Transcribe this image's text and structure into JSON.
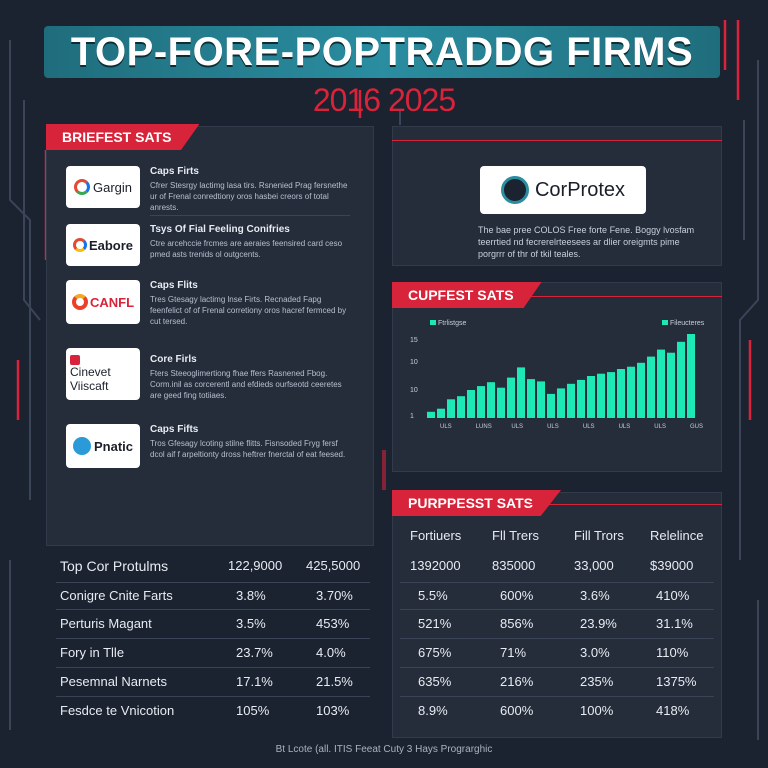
{
  "header": {
    "title": "TOP-FORE-POPTRADDG FIRMS",
    "subtitle": "2016 2025"
  },
  "left_panel": {
    "tag": "BRIEFEST SATS",
    "firms": [
      {
        "logo": "Gargin",
        "logo_icon": "g-logo-icon",
        "title": "Caps Firts",
        "desc": "Cfrer Stesrgy lactimg lasa tirs. Rsnenied Prag fersnethe ur of Frenal conredtiony oros hasbei creors of total anrests."
      },
      {
        "logo": "Eabore",
        "logo_icon": "g-logo-icon",
        "title": "Tsys Of Fial Feeling Conifries",
        "desc": "Ctre arcehccie frcmes are aeraies feensired card ceso pmed asts trenids ol outgcents."
      },
      {
        "logo": "CANFL",
        "logo_icon": "swirl-icon",
        "title": "Caps Flits",
        "desc": "Tres Gtesagy lactimg lnse Firts. Recnaded Fapg feenfelict of of Frenal corretiony oros hacref fermced by cut tersed."
      },
      {
        "logo": "Cinevet Viiscaft",
        "logo_icon": "red-s-icon",
        "title": "Core Firls",
        "desc": "Fters Steeoglimertiong fhae ffers Rasnened Fbog. Corm.inil as corcerentl and efdieds ourfseotd ceeretes are geed fing totiiaes."
      },
      {
        "logo": "Pnatic",
        "logo_icon": "p-circle-icon",
        "title": "Caps Fifts",
        "desc": "Tros Gfesagy lcoting stilne flitts. Fisnsoded Fryg fersf dcol aif f arpeltionty dross heftrer fnerctal of eat feesed."
      }
    ]
  },
  "right_top": {
    "logo": "CorProtex",
    "desc": "The bae pree COLOS Free forte Fene. Boggy lvosfam teerrtied nd fecrerelrteesees ar dlier oreigmts pime porgrrr of thr of tkil teales."
  },
  "chart_panel": {
    "tag": "CUPFEST SATS",
    "legend_left": "Ftrlistgse",
    "legend_right": "Fileucteres",
    "tick_y": [
      "15",
      "10",
      "10",
      "1"
    ],
    "tick_x": [
      "ULS",
      "LUNS",
      "ULS",
      "ULS",
      "ULS",
      "ULS",
      "ULS",
      "GUS"
    ]
  },
  "chart_data": {
    "type": "bar",
    "values": [
      0.8,
      1.2,
      2.4,
      2.8,
      3.6,
      4.1,
      4.6,
      3.9,
      5.2,
      6.5,
      5.0,
      4.7,
      3.1,
      3.8,
      4.4,
      4.9,
      5.4,
      5.7,
      5.9,
      6.3,
      6.6,
      7.1,
      7.9,
      8.8,
      8.4,
      9.8,
      10.8
    ]
  },
  "table_panel_tag": "PURPPESST SATS",
  "table": {
    "headers": [
      "Top Cor Protulms",
      "122,9000",
      "425,5000",
      "1392000",
      "835000",
      "33,000",
      "$39000"
    ],
    "right_headers": [
      "Fortiuers",
      "Fll Trers",
      "Fill Trors",
      "Relelince"
    ],
    "rows": [
      [
        "Conigre Cnite Farts",
        "3.8%",
        "3.70%",
        "5.5%",
        "600%",
        "3.6%",
        "410%"
      ],
      [
        "Perturis Magant",
        "3.5%",
        "453%",
        "521%",
        "856%",
        "23.9%",
        "31.1%"
      ],
      [
        "Fory in Tlle",
        "23.7%",
        "4.0%",
        "675%",
        "71%",
        "3.0%",
        "110%"
      ],
      [
        "Pesemnal Narnets",
        "17.1%",
        "21.5%",
        "635%",
        "216%",
        "235%",
        "1375%"
      ],
      [
        "Fesdce te Vnicotion",
        "105%",
        "103%",
        "8.9%",
        "600%",
        "100%",
        "418%"
      ]
    ]
  },
  "footer": "Bt Lcote (all. ITIS Feeat Cuty 3 Hays Prograrghic",
  "colors": {
    "accent": "#d8243a",
    "teal": "#1de9b6",
    "panel": "#252c3a"
  }
}
